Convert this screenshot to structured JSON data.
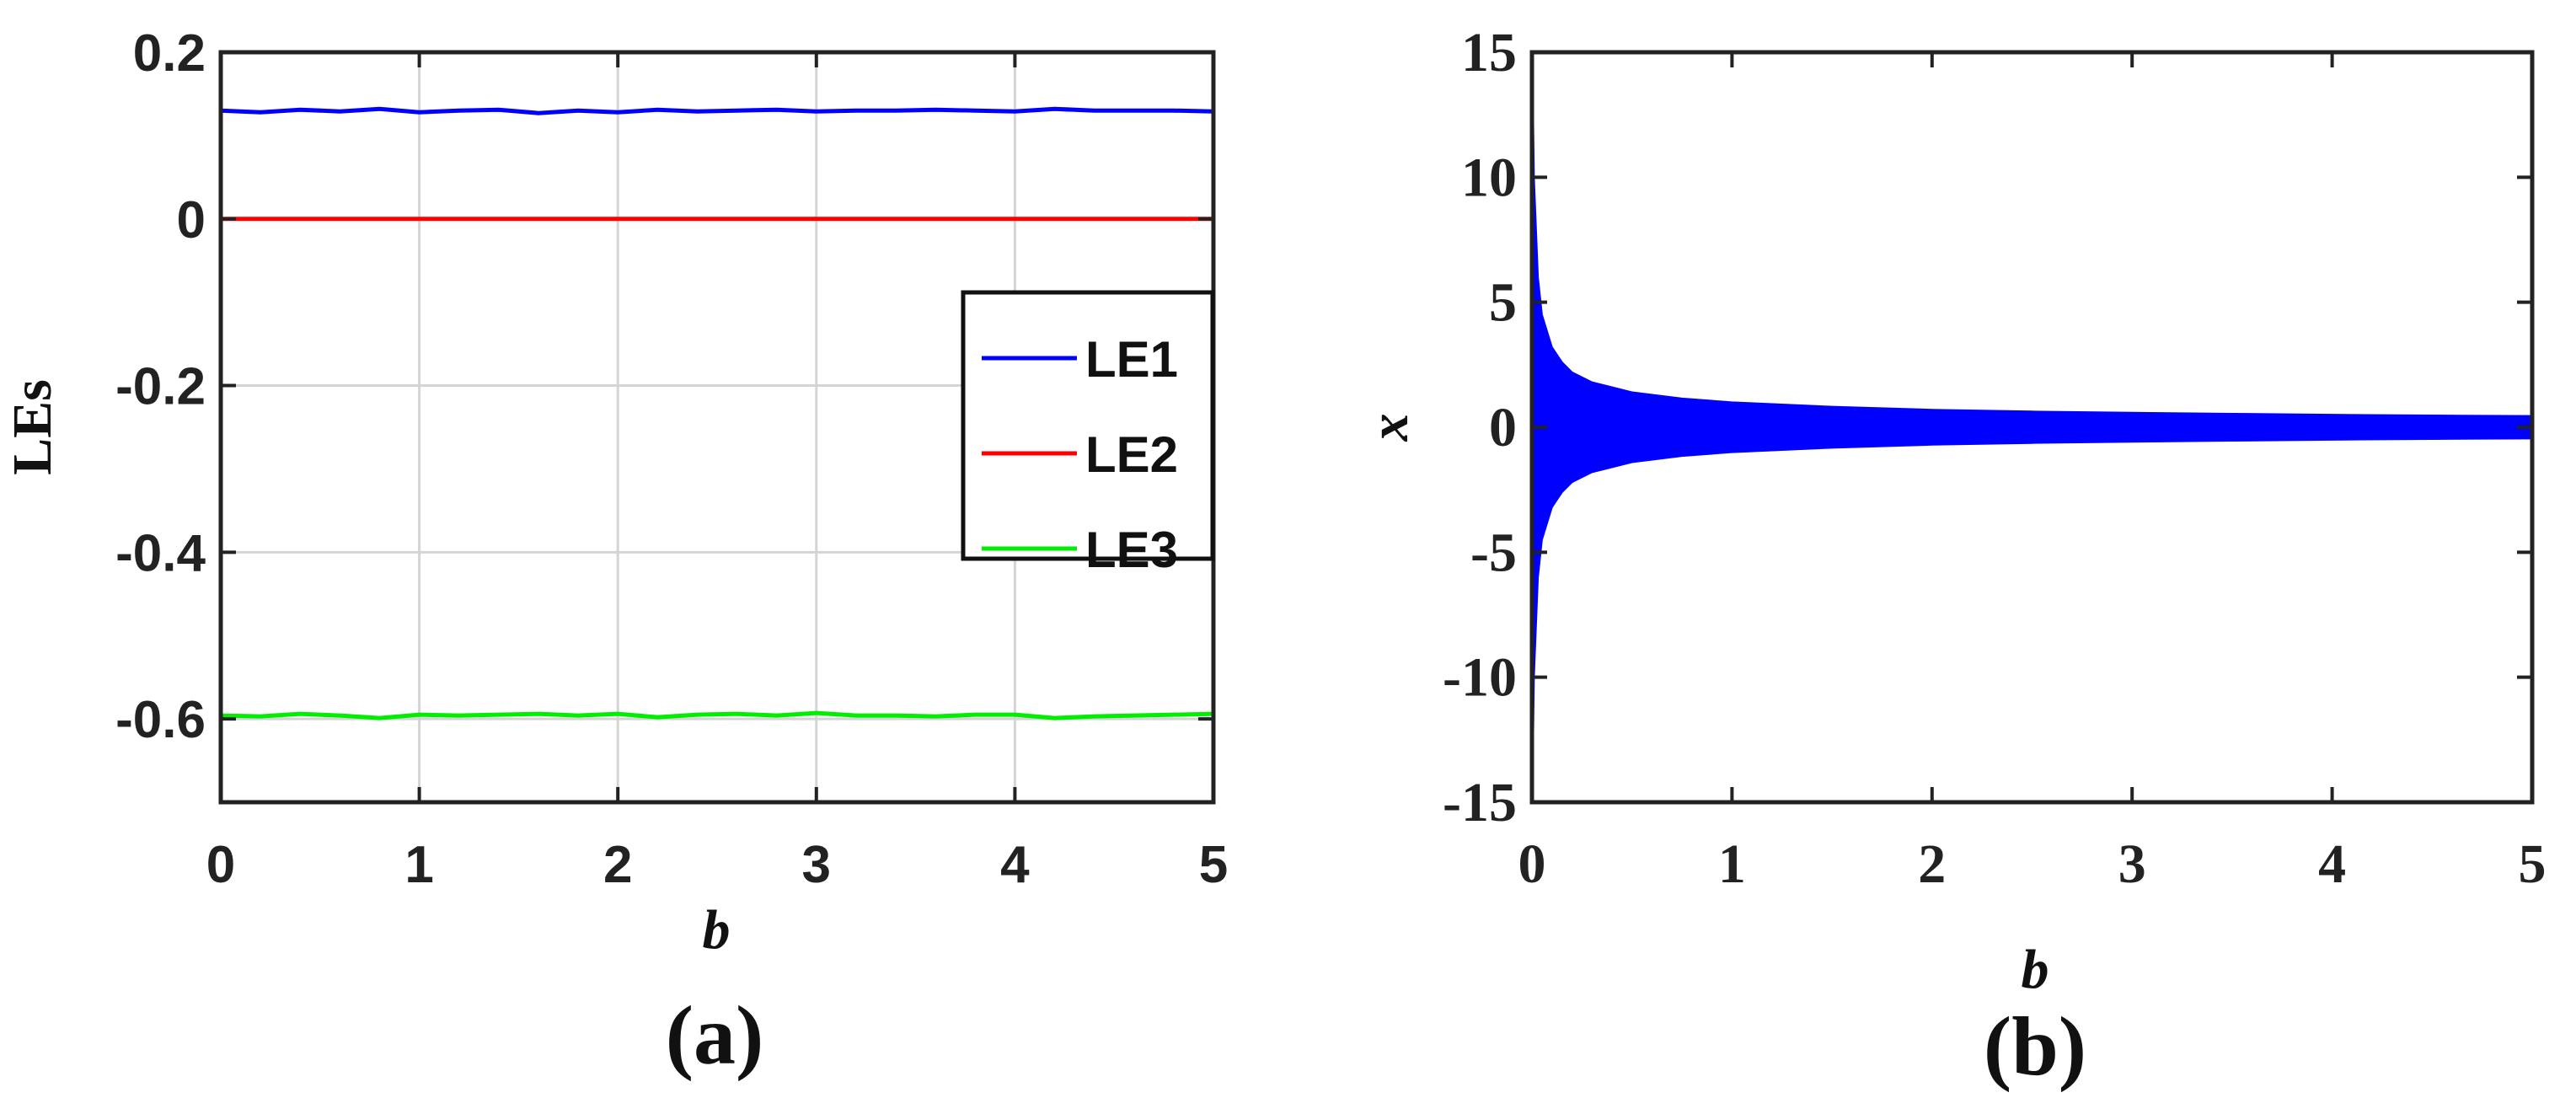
{
  "chart_data": [
    {
      "panel_label": "(a)",
      "type": "line",
      "xlabel": "b",
      "ylabel": "LEs",
      "xlim": [
        0,
        5
      ],
      "ylim": [
        -0.7,
        0.2
      ],
      "xticks": [
        "0",
        "1",
        "2",
        "3",
        "4",
        "5"
      ],
      "yticks": [
        "0.2",
        "0",
        "-0.2",
        "-0.4",
        "-0.6"
      ],
      "ytick_values": [
        0.2,
        0,
        -0.2,
        -0.4,
        -0.6
      ],
      "grid": true,
      "legend_position": "right",
      "x": [
        0,
        0.2,
        0.4,
        0.6,
        0.8,
        1.0,
        1.2,
        1.4,
        1.6,
        1.8,
        2.0,
        2.2,
        2.4,
        2.6,
        2.8,
        3.0,
        3.2,
        3.4,
        3.6,
        3.8,
        4.0,
        4.2,
        4.4,
        4.6,
        4.8,
        5.0
      ],
      "series": [
        {
          "name": "LE1",
          "color": "#0000ff",
          "values": [
            0.13,
            0.128,
            0.131,
            0.129,
            0.132,
            0.128,
            0.13,
            0.131,
            0.127,
            0.13,
            0.128,
            0.131,
            0.129,
            0.13,
            0.131,
            0.129,
            0.13,
            0.13,
            0.131,
            0.13,
            0.129,
            0.132,
            0.13,
            0.13,
            0.13,
            0.129
          ]
        },
        {
          "name": "LE2",
          "color": "#ff0000",
          "values": [
            0,
            0,
            0,
            0,
            0,
            0,
            0,
            0,
            0,
            0,
            0,
            0,
            0,
            0,
            0,
            0,
            0,
            0,
            0,
            0,
            0,
            0,
            0,
            0,
            0,
            0
          ]
        },
        {
          "name": "LE3",
          "color": "#00ee00",
          "values": [
            -0.596,
            -0.597,
            -0.594,
            -0.596,
            -0.599,
            -0.595,
            -0.596,
            -0.595,
            -0.594,
            -0.596,
            -0.594,
            -0.598,
            -0.595,
            -0.594,
            -0.596,
            -0.593,
            -0.596,
            -0.596,
            -0.597,
            -0.595,
            -0.595,
            -0.599,
            -0.597,
            -0.596,
            -0.595,
            -0.594
          ]
        }
      ]
    },
    {
      "panel_label": "(b)",
      "type": "area",
      "description_kind": "bifurcation envelope",
      "xlabel": "b",
      "ylabel": "x",
      "xlim": [
        0,
        5
      ],
      "ylim": [
        -15,
        15
      ],
      "xticks": [
        "0",
        "1",
        "2",
        "3",
        "4",
        "5"
      ],
      "yticks": [
        "15",
        "10",
        "5",
        "0",
        "-5",
        "-10",
        "-15"
      ],
      "ytick_values": [
        15,
        10,
        5,
        0,
        -5,
        -10,
        -15
      ],
      "grid": false,
      "color": "#0000ff",
      "x": [
        0.002,
        0.01,
        0.03,
        0.05,
        0.1,
        0.15,
        0.2,
        0.3,
        0.5,
        0.75,
        1,
        1.5,
        2,
        2.5,
        3,
        3.5,
        4,
        4.5,
        5
      ],
      "upper": [
        14.8,
        10,
        6,
        4.5,
        3.2,
        2.6,
        2.2,
        1.8,
        1.4,
        1.15,
        1,
        0.82,
        0.7,
        0.63,
        0.58,
        0.54,
        0.5,
        0.47,
        0.45
      ],
      "lower": [
        -14.8,
        -10,
        -6,
        -4.5,
        -3.2,
        -2.6,
        -2.2,
        -1.8,
        -1.4,
        -1.15,
        -1,
        -0.82,
        -0.7,
        -0.63,
        -0.58,
        -0.54,
        -0.5,
        -0.47,
        -0.45
      ]
    }
  ]
}
